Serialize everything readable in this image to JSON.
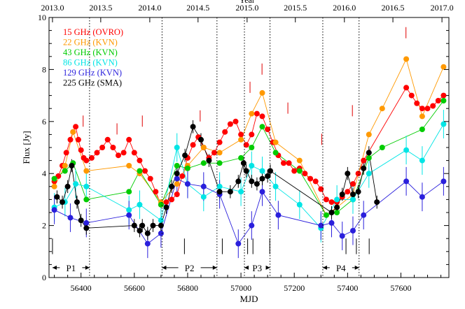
{
  "chart_data": {
    "type": "scatter",
    "title": "",
    "xlabel": "MJD",
    "ylabel": "Flux [Jy]",
    "top_axis_label": "Year",
    "xlim": [
      56280,
      57780
    ],
    "ylim": [
      0,
      10
    ],
    "x_ticks": [
      "56400",
      "56600",
      "56800",
      "57000",
      "57200",
      "57400",
      "57600"
    ],
    "y_ticks": [
      "0",
      "2",
      "4",
      "6",
      "8",
      "10"
    ],
    "top_ticks": [
      "2013.0",
      "2013.5",
      "2014.0",
      "2014.5",
      "2015.0",
      "2015.5",
      "2016.0",
      "2016.5",
      "2017.0"
    ],
    "top_tick_mjd": [
      56293,
      56474,
      56658,
      56839,
      57023,
      57204,
      57388,
      57570,
      57754
    ],
    "legend_placement": "top-left",
    "series": [
      {
        "name": "15 GHz (OVRO)",
        "color": "#ff0000",
        "connected": true,
        "x": [
          56300,
          56315,
          56330,
          56345,
          56360,
          56370,
          56380,
          56390,
          56400,
          56410,
          56420,
          56440,
          56460,
          56480,
          56500,
          56520,
          56540,
          56560,
          56580,
          56600,
          56620,
          56640,
          56660,
          56680,
          56700,
          56720,
          56740,
          56760,
          56780,
          56800,
          56820,
          56840,
          56860,
          56880,
          56900,
          56920,
          56940,
          56960,
          56980,
          57000,
          57020,
          57040,
          57060,
          57080,
          57100,
          57120,
          57140,
          57160,
          57180,
          57200,
          57220,
          57240,
          57260,
          57280,
          57300,
          57320,
          57340,
          57360,
          57380,
          57400,
          57420,
          57440,
          57460,
          57620,
          57640,
          57660,
          57680,
          57700,
          57720,
          57740,
          57760
        ],
        "y": [
          3.7,
          3.9,
          4.3,
          4.8,
          5.3,
          5.6,
          5.8,
          5.3,
          4.9,
          4.6,
          4.5,
          4.6,
          4.8,
          5.0,
          5.3,
          5.0,
          4.7,
          4.8,
          5.3,
          4.8,
          4.5,
          4.1,
          3.8,
          3.3,
          2.8,
          2.9,
          3.0,
          3.2,
          3.9,
          4.6,
          5.1,
          5.4,
          5.0,
          4.6,
          4.8,
          5.2,
          5.6,
          5.9,
          6.0,
          5.5,
          5.1,
          5.5,
          6.3,
          6.2,
          5.7,
          5.2,
          4.7,
          4.4,
          4.4,
          4.1,
          4.2,
          4.0,
          3.8,
          3.7,
          3.4,
          3.0,
          2.9,
          2.9,
          3.1,
          3.3,
          3.6,
          4.0,
          4.5,
          7.3,
          7.0,
          6.7,
          6.5,
          6.5,
          6.6,
          6.8,
          7.0
        ]
      },
      {
        "name": "22 GHz (KVN)",
        "color": "#ff9900",
        "connected": true,
        "x": [
          56300,
          56340,
          56370,
          56420,
          56580,
          56620,
          56700,
          56760,
          56800,
          56860,
          56920,
          57000,
          57040,
          57080,
          57130,
          57220,
          57320,
          57360,
          57420,
          57480,
          57530,
          57620,
          57680,
          57760
        ],
        "y": [
          3.5,
          4.3,
          5.6,
          4.1,
          4.3,
          4.0,
          2.9,
          3.6,
          4.3,
          5.0,
          4.8,
          5.3,
          6.3,
          7.1,
          5.2,
          4.5,
          2.4,
          2.7,
          3.2,
          5.5,
          6.5,
          8.4,
          6.2,
          8.1
        ]
      },
      {
        "name": "43 GHz (KVN)",
        "color": "#00cc00",
        "connected": true,
        "x": [
          56300,
          56340,
          56370,
          56420,
          56580,
          56620,
          56700,
          56760,
          56800,
          56860,
          56920,
          57000,
          57040,
          57080,
          57130,
          57220,
          57320,
          57360,
          57420,
          57480,
          57530,
          57680,
          57760
        ],
        "y": [
          3.8,
          4.1,
          4.4,
          3.0,
          3.3,
          4.1,
          2.8,
          4.3,
          4.2,
          4.4,
          4.4,
          4.6,
          5.0,
          5.8,
          4.8,
          4.1,
          2.4,
          2.5,
          3.0,
          4.6,
          5.0,
          5.7,
          6.8
        ]
      },
      {
        "name": "86 GHz (KVN)",
        "color": "#00e5e5",
        "connected": true,
        "x": [
          56300,
          56340,
          56380,
          56420,
          56580,
          56620,
          56700,
          56760,
          56800,
          56860,
          56920,
          57000,
          57040,
          57080,
          57130,
          57220,
          57300,
          57360,
          57420,
          57480,
          57620,
          57680,
          57760
        ],
        "y": [
          2.7,
          2.9,
          3.6,
          3.5,
          2.6,
          2.8,
          2.2,
          5.0,
          3.6,
          3.1,
          3.5,
          3.3,
          4.3,
          4.1,
          3.5,
          2.8,
          1.9,
          3.0,
          3.0,
          4.0,
          4.9,
          4.5,
          5.9
        ]
      },
      {
        "name": "129 GHz (KVN)",
        "color": "#2a1fdc",
        "connected": true,
        "x": [
          56300,
          56360,
          56420,
          56580,
          56650,
          56700,
          56760,
          56800,
          56860,
          56920,
          56990,
          57040,
          57080,
          57140,
          57300,
          57340,
          57380,
          57420,
          57460,
          57620,
          57680,
          57760
        ],
        "y": [
          2.6,
          2.3,
          2.1,
          2.4,
          1.3,
          1.7,
          3.8,
          3.6,
          3.5,
          3.2,
          1.3,
          2.0,
          3.3,
          2.4,
          2.0,
          2.1,
          1.6,
          1.8,
          2.4,
          3.7,
          3.1,
          3.7
        ]
      },
      {
        "name": "225 GHz (SMA)",
        "color": "#000000",
        "connected": true,
        "x": [
          56310,
          56330,
          56350,
          56365,
          56385,
          56400,
          56420,
          56600,
          56620,
          56630,
          56650,
          56670,
          56700,
          56720,
          56740,
          56760,
          56790,
          56820,
          56850,
          56880,
          56920,
          56960,
          56990,
          57010,
          57020,
          57040,
          57060,
          57080,
          57100,
          57110,
          57340,
          57360,
          57380,
          57400,
          57420,
          57440,
          57460,
          57480,
          57510
        ],
        "y": [
          3.1,
          2.9,
          3.5,
          4.3,
          2.9,
          2.2,
          1.9,
          2.0,
          1.8,
          2.0,
          1.7,
          2.0,
          2.0,
          2.7,
          3.5,
          4.0,
          4.7,
          5.8,
          5.3,
          4.5,
          3.3,
          3.3,
          3.7,
          4.4,
          4.1,
          3.7,
          3.6,
          3.8,
          3.9,
          4.1,
          2.5,
          2.7,
          3.2,
          4.0,
          3.2,
          3.3,
          4.2,
          4.8,
          2.9
        ]
      }
    ],
    "flare_marks_mjd": [
      56408,
      56535,
      56630,
      56847,
      57034,
      57079,
      57176,
      57303,
      57418,
      57619
    ],
    "vlines_mjd": [
      56432,
      56704,
      56910,
      57013,
      57109,
      57307,
      57443
    ],
    "bottom_ticks_mjd": [
      56293,
      56788,
      56930,
      57025,
      57045,
      57108,
      57394,
      57433,
      57481
    ],
    "periods": [
      {
        "label": "P1",
        "start": 56293,
        "end": 56432
      },
      {
        "label": "P2",
        "start": 56704,
        "end": 56910
      },
      {
        "label": "P3",
        "start": 57013,
        "end": 57109
      },
      {
        "label": "P4",
        "start": 57307,
        "end": 57443
      }
    ]
  }
}
